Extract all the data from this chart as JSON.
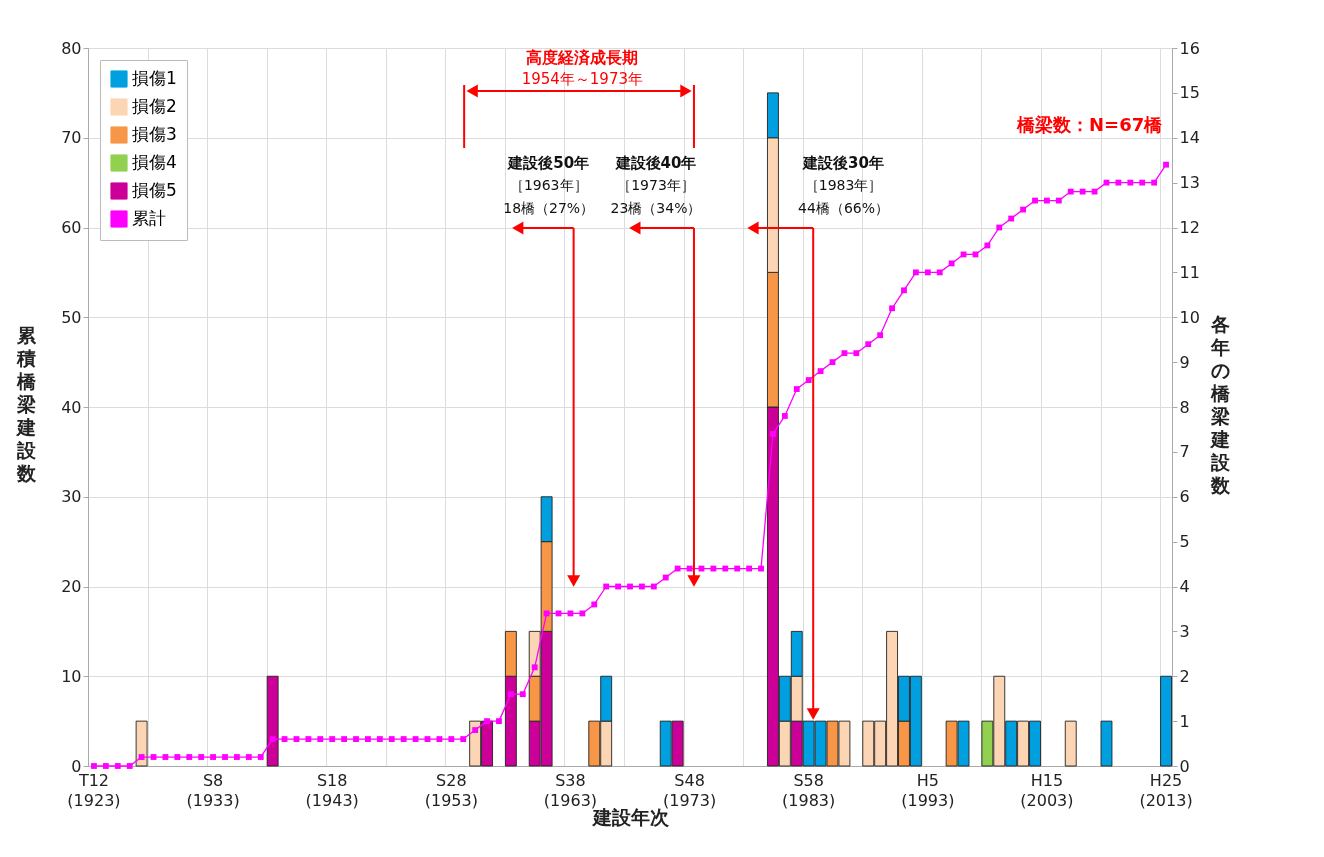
{
  "chart_data": {
    "type": "bar",
    "xlabel": "建設年次",
    "ylabel": "累積橋梁建設数",
    "y2label": "各年の橋梁建設数",
    "categories": [
      "T12\n(1923)",
      null,
      null,
      null,
      null,
      null,
      null,
      null,
      null,
      null,
      "S8\n(1933)",
      null,
      null,
      null,
      null,
      null,
      null,
      null,
      null,
      null,
      "S18\n(1943)",
      null,
      null,
      null,
      null,
      null,
      null,
      null,
      null,
      null,
      "S28\n(1953)",
      null,
      null,
      null,
      null,
      null,
      null,
      null,
      null,
      null,
      "S38\n(1963)",
      null,
      null,
      null,
      null,
      null,
      null,
      null,
      null,
      null,
      "S48\n(1973)",
      null,
      null,
      null,
      null,
      null,
      null,
      null,
      null,
      null,
      "S58\n(1983)",
      null,
      null,
      null,
      null,
      null,
      null,
      null,
      null,
      null,
      "H5\n(1993)",
      null,
      null,
      null,
      null,
      null,
      null,
      null,
      null,
      null,
      "H15\n(2003)",
      null,
      null,
      null,
      null,
      null,
      null,
      null,
      null,
      null,
      "H25\n(2013)"
    ],
    "series": [
      {
        "name": "損傷5",
        "color": "#cc0099",
        "axis": "y2",
        "values": [
          null,
          null,
          null,
          null,
          null,
          null,
          null,
          null,
          null,
          null,
          null,
          null,
          null,
          null,
          null,
          2,
          null,
          null,
          null,
          null,
          null,
          null,
          null,
          null,
          null,
          null,
          null,
          null,
          null,
          null,
          null,
          null,
          null,
          1,
          null,
          2,
          null,
          1,
          3,
          null,
          null,
          null,
          null,
          null,
          null,
          null,
          null,
          null,
          null,
          1,
          null,
          null,
          null,
          null,
          null,
          null,
          null,
          8,
          null,
          1,
          null,
          null,
          null,
          null,
          null,
          null,
          null,
          null,
          null,
          null,
          null,
          null,
          null,
          null,
          null,
          null,
          null,
          null,
          null,
          null,
          null,
          null,
          null,
          null,
          null,
          null,
          null,
          null,
          null,
          null,
          null
        ]
      },
      {
        "name": "損傷4",
        "color": "#92d050",
        "axis": "y2",
        "values": [
          null,
          null,
          null,
          null,
          null,
          null,
          null,
          null,
          null,
          null,
          null,
          null,
          null,
          null,
          null,
          null,
          null,
          null,
          null,
          null,
          null,
          null,
          null,
          null,
          null,
          null,
          null,
          null,
          null,
          null,
          null,
          null,
          null,
          null,
          null,
          null,
          null,
          null,
          null,
          null,
          null,
          null,
          null,
          null,
          null,
          null,
          null,
          null,
          null,
          null,
          null,
          null,
          null,
          null,
          null,
          null,
          null,
          null,
          null,
          null,
          null,
          null,
          null,
          null,
          null,
          null,
          null,
          null,
          null,
          null,
          null,
          null,
          null,
          null,
          null,
          1,
          null,
          null,
          null,
          null,
          null,
          null,
          null,
          null,
          null,
          null,
          null,
          null,
          null,
          null,
          null
        ]
      },
      {
        "name": "損傷3",
        "color": "#f79646",
        "axis": "y2",
        "values": [
          null,
          null,
          null,
          null,
          null,
          null,
          null,
          null,
          null,
          null,
          null,
          null,
          null,
          null,
          null,
          null,
          null,
          null,
          null,
          null,
          null,
          null,
          null,
          null,
          null,
          null,
          null,
          null,
          null,
          null,
          null,
          null,
          null,
          null,
          null,
          1,
          null,
          1,
          2,
          null,
          null,
          null,
          1,
          null,
          null,
          null,
          null,
          null,
          null,
          null,
          null,
          null,
          null,
          null,
          null,
          null,
          null,
          3,
          null,
          null,
          null,
          null,
          1,
          null,
          null,
          null,
          null,
          null,
          1,
          null,
          null,
          null,
          1,
          null,
          null,
          null,
          null,
          null,
          null,
          null,
          null,
          null,
          null,
          null,
          null,
          null,
          null,
          null,
          null,
          null,
          null
        ]
      },
      {
        "name": "損傷2",
        "color": "#fcd5b4",
        "axis": "y2",
        "values": [
          null,
          null,
          null,
          null,
          1,
          null,
          null,
          null,
          null,
          null,
          null,
          null,
          null,
          null,
          null,
          null,
          null,
          null,
          null,
          null,
          null,
          null,
          null,
          null,
          null,
          null,
          null,
          null,
          null,
          null,
          null,
          null,
          1,
          null,
          null,
          null,
          null,
          1,
          null,
          null,
          null,
          null,
          null,
          1,
          null,
          null,
          null,
          null,
          null,
          null,
          null,
          null,
          null,
          null,
          null,
          null,
          null,
          3,
          1,
          1,
          null,
          null,
          null,
          1,
          null,
          1,
          1,
          3,
          null,
          null,
          null,
          null,
          null,
          null,
          null,
          null,
          2,
          null,
          1,
          null,
          null,
          null,
          1,
          null,
          null,
          null,
          null,
          null,
          null,
          null,
          null
        ]
      },
      {
        "name": "損傷1",
        "color": "#00a0e0",
        "axis": "y2",
        "values": [
          null,
          null,
          null,
          null,
          null,
          null,
          null,
          null,
          null,
          null,
          null,
          null,
          null,
          null,
          null,
          null,
          null,
          null,
          null,
          null,
          null,
          null,
          null,
          null,
          null,
          null,
          null,
          null,
          null,
          null,
          null,
          null,
          null,
          null,
          null,
          null,
          null,
          null,
          1,
          null,
          null,
          null,
          null,
          1,
          null,
          null,
          null,
          null,
          1,
          null,
          null,
          null,
          null,
          null,
          null,
          null,
          null,
          1,
          1,
          1,
          1,
          1,
          null,
          null,
          null,
          null,
          null,
          null,
          1,
          2,
          null,
          null,
          null,
          1,
          null,
          null,
          null,
          1,
          null,
          1,
          null,
          null,
          null,
          null,
          null,
          1,
          null,
          null,
          null,
          null,
          2
        ]
      },
      {
        "name": "累計",
        "type": "line",
        "color": "#ff00ff",
        "axis": "y",
        "values": [
          0,
          0,
          0,
          0,
          1,
          1,
          1,
          1,
          1,
          1,
          1,
          1,
          1,
          1,
          1,
          3,
          3,
          3,
          3,
          3,
          3,
          3,
          3,
          3,
          3,
          3,
          3,
          3,
          3,
          3,
          3,
          3,
          4,
          5,
          5,
          8,
          8,
          11,
          17,
          17,
          17,
          17,
          18,
          20,
          20,
          20,
          20,
          20,
          21,
          22,
          22,
          22,
          22,
          22,
          22,
          22,
          22,
          37,
          39,
          42,
          43,
          44,
          45,
          46,
          46,
          47,
          48,
          51,
          53,
          55,
          55,
          55,
          56,
          57,
          57,
          58,
          60,
          61,
          62,
          63,
          63,
          63,
          64,
          64,
          64,
          65,
          65,
          65,
          65,
          65,
          67
        ]
      }
    ],
    "stacked": true,
    "ylim": [
      0,
      80
    ],
    "yticks": [
      0,
      10,
      20,
      30,
      40,
      50,
      60,
      70,
      80
    ],
    "y2lim": [
      0,
      16
    ],
    "y2ticks": [
      0,
      1,
      2,
      3,
      4,
      5,
      6,
      7,
      8,
      9,
      10,
      11,
      12,
      13,
      14,
      15,
      16
    ],
    "grid": true,
    "legend": "top left",
    "marker": "square",
    "line_style": "solid",
    "annotations": [
      "高度経済成長期",
      "1954年～1973年",
      "建設後50年",
      "［1963年］",
      "18橋（27%）",
      "建設後40年",
      "［1973年］",
      "23橋（34%）",
      "建設後30年",
      "［1983年］",
      "44橋（66%）",
      "橋梁数：N=67橋"
    ]
  }
}
